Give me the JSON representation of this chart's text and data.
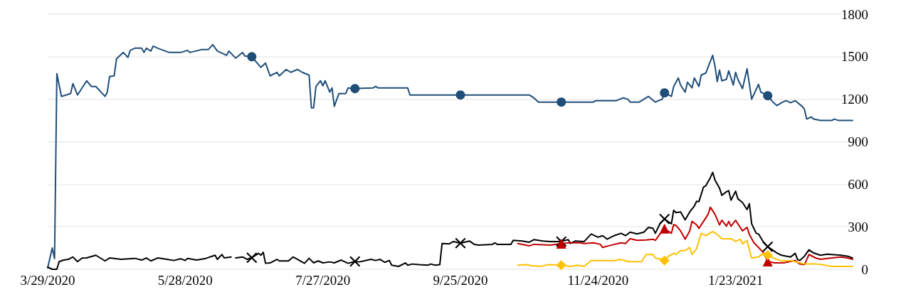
{
  "chart_data": {
    "type": "line",
    "marker": "none",
    "grid": "y",
    "xlim": [
      "2020-03-29",
      "2021-03-15"
    ],
    "xticks": [
      {
        "value": "2020-03-29",
        "label": "3/29/2020"
      },
      {
        "value": "2020-05-28",
        "label": "5/28/2020"
      },
      {
        "value": "2020-07-27",
        "label": "7/27/2020"
      },
      {
        "value": "2020-09-25",
        "label": "9/25/2020"
      },
      {
        "value": "2020-11-24",
        "label": "11/24/2020"
      },
      {
        "value": "2021-01-23",
        "label": "1/23/2021"
      }
    ],
    "ylim": [
      0,
      1800
    ],
    "yticks": [
      0,
      300,
      600,
      900,
      1200,
      1500,
      1800
    ],
    "series": [
      {
        "color": "#1f4e79",
        "x": [
          "2020-03-29",
          "2020-03-31",
          "2020-04-01",
          "2020-04-02",
          "2020-04-04",
          "2020-04-08",
          "2020-04-09",
          "2020-04-11",
          "2020-04-15",
          "2020-04-17",
          "2020-04-19",
          "2020-04-23",
          "2020-04-24",
          "2020-04-25",
          "2020-04-27",
          "2020-04-28",
          "2020-05-01",
          "2020-05-03",
          "2020-05-04",
          "2020-05-06",
          "2020-05-09",
          "2020-05-10",
          "2020-05-11",
          "2020-05-13",
          "2020-05-14",
          "2020-05-16",
          "2020-05-21",
          "2020-05-26",
          "2020-05-29",
          "2020-05-30",
          "2020-06-04",
          "2020-06-07",
          "2020-06-09",
          "2020-06-11",
          "2020-06-13",
          "2020-06-15",
          "2020-06-16",
          "2020-06-19",
          "2020-06-22",
          "2020-06-23",
          "2020-06-26",
          "2020-06-30",
          "2020-07-02",
          "2020-07-04",
          "2020-07-07",
          "2020-07-08",
          "2020-07-11",
          "2020-07-13",
          "2020-07-16",
          "2020-07-18",
          "2020-07-21",
          "2020-07-22",
          "2020-07-23",
          "2020-07-24",
          "2020-07-26",
          "2020-07-27",
          "2020-07-28",
          "2020-07-30",
          "2020-07-31",
          "2020-08-01",
          "2020-08-03",
          "2020-08-06",
          "2020-08-07",
          "2020-08-10",
          "2020-08-18",
          "2020-08-19",
          "2020-08-20",
          "2020-09-02",
          "2020-09-03",
          "2020-09-25",
          "2020-10-25",
          "2020-10-27",
          "2020-10-29",
          "2020-11-08",
          "2020-11-22",
          "2020-11-23",
          "2020-12-02",
          "2020-12-05",
          "2020-12-07",
          "2020-12-08",
          "2020-12-12",
          "2020-12-16",
          "2020-12-19",
          "2020-12-22",
          "2020-12-23",
          "2020-12-26",
          "2020-12-27",
          "2020-12-29",
          "2020-12-30",
          "2021-01-01",
          "2021-01-02",
          "2021-01-04",
          "2021-01-05",
          "2021-01-07",
          "2021-01-08",
          "2021-01-10",
          "2021-01-13",
          "2021-01-14",
          "2021-01-15",
          "2021-01-16",
          "2021-01-17",
          "2021-01-19",
          "2021-01-20",
          "2021-01-22",
          "2021-01-23",
          "2021-01-24",
          "2021-01-26",
          "2021-01-28",
          "2021-01-30",
          "2021-02-02",
          "2021-02-03",
          "2021-02-06",
          "2021-02-08",
          "2021-02-10",
          "2021-02-12",
          "2021-02-14",
          "2021-02-16",
          "2021-02-18",
          "2021-02-21",
          "2021-02-22",
          "2021-02-23",
          "2021-02-25",
          "2021-02-26",
          "2021-03-01",
          "2021-03-06",
          "2021-03-07",
          "2021-03-09",
          "2021-03-15"
        ],
        "values": [
          10,
          150,
          75,
          1380,
          1220,
          1240,
          1310,
          1230,
          1330,
          1290,
          1290,
          1220,
          1250,
          1360,
          1365,
          1485,
          1530,
          1495,
          1545,
          1560,
          1560,
          1530,
          1560,
          1540,
          1575,
          1560,
          1530,
          1530,
          1545,
          1530,
          1550,
          1550,
          1585,
          1540,
          1525,
          1510,
          1540,
          1490,
          1530,
          1505,
          1500,
          1425,
          1455,
          1365,
          1390,
          1365,
          1410,
          1390,
          1410,
          1390,
          1370,
          1140,
          1140,
          1290,
          1330,
          1295,
          1330,
          1250,
          1280,
          1150,
          1240,
          1240,
          1280,
          1275,
          1280,
          1290,
          1280,
          1280,
          1230,
          1230,
          1230,
          1210,
          1180,
          1180,
          1180,
          1190,
          1190,
          1210,
          1200,
          1180,
          1180,
          1220,
          1180,
          1200,
          1245,
          1220,
          1290,
          1350,
          1300,
          1250,
          1320,
          1280,
          1350,
          1290,
          1370,
          1385,
          1510,
          1435,
          1325,
          1405,
          1330,
          1340,
          1400,
          1300,
          1390,
          1340,
          1275,
          1415,
          1200,
          1305,
          1250,
          1225,
          1185,
          1155,
          1175,
          1190,
          1175,
          1190,
          1150,
          1130,
          1060,
          1075,
          1060,
          1050,
          1050,
          1060,
          1050,
          1050
        ]
      },
      {
        "color": "#000000",
        "x": [
          "2020-03-29",
          "2020-03-31",
          "2020-04-02",
          "2020-04-03",
          "2020-04-05",
          "2020-04-07",
          "2020-04-09",
          "2020-04-11",
          "2020-04-13",
          "2020-04-15",
          "2020-04-19",
          "2020-04-23",
          "2020-04-25",
          "2020-04-30",
          "2020-05-06",
          "2020-05-09",
          "2020-05-11",
          "2020-05-13",
          "2020-05-16",
          "2020-05-20",
          "2020-05-23",
          "2020-05-26",
          "2020-05-28",
          "2020-05-29",
          "2020-06-02",
          "2020-06-06",
          "2020-06-10",
          "2020-06-11",
          "2020-06-13",
          "2020-06-14",
          "2020-06-17",
          "2020-06-18",
          "2020-06-19",
          "2020-06-22",
          "2020-06-24",
          "2020-06-26",
          "2020-06-29",
          "2020-06-30",
          "2020-07-01",
          "2020-07-02",
          "2020-07-04",
          "2020-07-07",
          "2020-07-08",
          "2020-07-12",
          "2020-07-14",
          "2020-07-16",
          "2020-07-19",
          "2020-07-21",
          "2020-07-23",
          "2020-07-25",
          "2020-07-27",
          "2020-07-30",
          "2020-08-01",
          "2020-08-04",
          "2020-08-07",
          "2020-08-10",
          "2020-08-12",
          "2020-08-17",
          "2020-08-19",
          "2020-08-21",
          "2020-08-23",
          "2020-08-25",
          "2020-08-26",
          "2020-08-29",
          "2020-09-01",
          "2020-09-02",
          "2020-09-04",
          "2020-09-07",
          "2020-09-11",
          "2020-09-12",
          "2020-09-14",
          "2020-09-16",
          "2020-09-17",
          "2020-09-20",
          "2020-09-22",
          "2020-09-25",
          "2020-09-29",
          "2020-10-01",
          "2020-10-03",
          "2020-10-09",
          "2020-10-10",
          "2020-10-11",
          "2020-10-17",
          "2020-10-18",
          "2020-10-22",
          "2020-10-25",
          "2020-10-27",
          "2020-10-31",
          "2020-11-03",
          "2020-11-08",
          "2020-11-11",
          "2020-11-12",
          "2020-11-14",
          "2020-11-18",
          "2020-11-21",
          "2020-11-24",
          "2020-11-26",
          "2020-11-28",
          "2020-12-01",
          "2020-12-04",
          "2020-12-06",
          "2020-12-08",
          "2020-12-11",
          "2020-12-14",
          "2020-12-16",
          "2020-12-18",
          "2020-12-19",
          "2020-12-21",
          "2020-12-23",
          "2020-12-26",
          "2020-12-27",
          "2020-12-28",
          "2020-12-30",
          "2021-01-01",
          "2021-01-03",
          "2021-01-05",
          "2021-01-06",
          "2021-01-07",
          "2021-01-09",
          "2021-01-10",
          "2021-01-12",
          "2021-01-13",
          "2021-01-14",
          "2021-01-16",
          "2021-01-17",
          "2021-01-19",
          "2021-01-20",
          "2021-01-21",
          "2021-01-23",
          "2021-01-24",
          "2021-01-26",
          "2021-01-28",
          "2021-01-29",
          "2021-01-30",
          "2021-02-01",
          "2021-02-02",
          "2021-02-04",
          "2021-02-06",
          "2021-02-08",
          "2021-02-10",
          "2021-02-12",
          "2021-02-16",
          "2021-02-18",
          "2021-02-19",
          "2021-02-20",
          "2021-02-22",
          "2021-02-24",
          "2021-02-26",
          "2021-03-01",
          "2021-03-04",
          "2021-03-06",
          "2021-03-10",
          "2021-03-13",
          "2021-03-15"
        ],
        "values": [
          15,
          0,
          0,
          54,
          65,
          70,
          87,
          54,
          79,
          80,
          99,
          59,
          80,
          70,
          77,
          65,
          80,
          59,
          80,
          70,
          62,
          74,
          62,
          77,
          65,
          77,
          99,
          70,
          104,
          80,
          87,
          null,
          80,
          87,
          70,
          82,
          112,
          99,
          120,
          42,
          45,
          70,
          59,
          59,
          87,
          70,
          42,
          77,
          45,
          59,
          45,
          52,
          45,
          65,
          42,
          55,
          52,
          70,
          62,
          70,
          49,
          62,
          29,
          20,
          45,
          29,
          37,
          32,
          29,
          37,
          29,
          32,
          182,
          179,
          196,
          184,
          199,
          176,
          171,
          176,
          187,
          176,
          176,
          204,
          199,
          191,
          209,
          199,
          196,
          196,
          209,
          182,
          199,
          196,
          249,
          226,
          237,
          212,
          237,
          254,
          237,
          262,
          249,
          262,
          296,
          288,
          254,
          321,
          355,
          321,
          416,
          400,
          405,
          349,
          405,
          446,
          480,
          477,
          580,
          589,
          647,
          684,
          630,
          572,
          522,
          547,
          555,
          488,
          551,
          497,
          471,
          421,
          463,
          321,
          254,
          249,
          196,
          159,
          137,
          115,
          99,
          87,
          112,
          70,
          62,
          92,
          137,
          115,
          99,
          107,
          104,
          99,
          92,
          79
        ]
      },
      {
        "color": "#c00000",
        "x": [
          "2020-10-20",
          "2020-10-25",
          "2020-10-27",
          "2020-11-03",
          "2020-11-08",
          "2020-11-11",
          "2020-11-16",
          "2020-11-18",
          "2020-11-22",
          "2020-11-25",
          "2020-11-26",
          "2020-11-30",
          "2020-12-04",
          "2020-12-06",
          "2020-12-08",
          "2020-12-11",
          "2020-12-15",
          "2020-12-18",
          "2020-12-19",
          "2020-12-21",
          "2020-12-23",
          "2020-12-26",
          "2020-12-27",
          "2020-12-28",
          "2020-12-30",
          "2021-01-01",
          "2021-01-03",
          "2021-01-04",
          "2021-01-06",
          "2021-01-07",
          "2021-01-09",
          "2021-01-11",
          "2021-01-12",
          "2021-01-14",
          "2021-01-16",
          "2021-01-17",
          "2021-01-19",
          "2021-01-20",
          "2021-01-21",
          "2021-01-23",
          "2021-01-25",
          "2021-01-26",
          "2021-01-28",
          "2021-01-29",
          "2021-01-31",
          "2021-02-02",
          "2021-02-04",
          "2021-02-06",
          "2021-02-09",
          "2021-02-13",
          "2021-02-18",
          "2021-02-20",
          "2021-02-22",
          "2021-02-24",
          "2021-02-27",
          "2021-03-01",
          "2021-03-06",
          "2021-03-10",
          "2021-03-13",
          "2021-03-15"
        ],
        "values": [
          182,
          165,
          176,
          171,
          180,
          187,
          187,
          182,
          187,
          176,
          154,
          171,
          187,
          182,
          216,
          204,
          207,
          212,
          204,
          249,
          287,
          254,
          316,
          309,
          271,
          212,
          271,
          338,
          313,
          288,
          338,
          388,
          438,
          388,
          313,
          346,
          304,
          338,
          304,
          346,
          296,
          271,
          296,
          246,
          187,
          154,
          120,
          55,
          45,
          45,
          62,
          37,
          32,
          104,
          79,
          70,
          80,
          87,
          79,
          70
        ]
      },
      {
        "color": "#ffc000",
        "x": [
          "2020-10-20",
          "2020-10-24",
          "2020-10-26",
          "2020-10-30",
          "2020-11-02",
          "2020-11-08",
          "2020-11-12",
          "2020-11-15",
          "2020-11-18",
          "2020-11-21",
          "2020-12-02",
          "2020-12-03",
          "2020-12-05",
          "2020-12-07",
          "2020-12-13",
          "2020-12-15",
          "2020-12-18",
          "2020-12-19",
          "2020-12-22",
          "2020-12-23",
          "2020-12-25",
          "2020-12-27",
          "2020-12-28",
          "2020-12-30",
          "2021-01-01",
          "2021-01-03",
          "2021-01-04",
          "2021-01-06",
          "2021-01-08",
          "2021-01-10",
          "2021-01-13",
          "2021-01-15",
          "2021-01-17",
          "2021-01-21",
          "2021-01-23",
          "2021-01-25",
          "2021-01-26",
          "2021-01-28",
          "2021-01-29",
          "2021-01-30",
          "2021-02-02",
          "2021-02-04",
          "2021-02-06",
          "2021-02-10",
          "2021-02-12",
          "2021-02-16",
          "2021-02-22",
          "2021-02-27",
          "2021-03-02",
          "2021-03-06",
          "2021-03-15"
        ],
        "values": [
          29,
          32,
          25,
          20,
          32,
          29,
          20,
          29,
          20,
          62,
          62,
          70,
          65,
          54,
          54,
          104,
          104,
          79,
          70,
          62,
          95,
          112,
          104,
          132,
          132,
          154,
          104,
          146,
          254,
          237,
          266,
          246,
          216,
          216,
          196,
          212,
          179,
          204,
          137,
          79,
          87,
          112,
          99,
          70,
          59,
          62,
          37,
          37,
          32,
          20,
          20
        ]
      },
      {
        "type": "scatter",
        "marker": "circle",
        "color": "#1f4e79",
        "x": [
          "2020-06-26",
          "2020-08-10",
          "2020-09-25",
          "2020-11-08",
          "2020-12-23",
          "2021-02-06"
        ],
        "values": [
          1500,
          1275,
          1230,
          1180,
          1245,
          1225
        ]
      },
      {
        "type": "scatter",
        "marker": "cross",
        "color": "#000000",
        "x": [
          "2020-06-26",
          "2020-08-10",
          "2020-09-25",
          "2020-11-08",
          "2020-12-23",
          "2021-02-06"
        ],
        "values": [
          82,
          55,
          184,
          196,
          355,
          159
        ]
      },
      {
        "type": "scatter",
        "marker": "triangle",
        "color": "#c00000",
        "x": [
          "2020-11-08",
          "2020-12-23",
          "2021-02-06"
        ],
        "values": [
          180,
          287,
          55
        ]
      },
      {
        "type": "scatter",
        "marker": "diamond",
        "color": "#ffc000",
        "x": [
          "2020-11-08",
          "2020-12-23",
          "2021-02-06"
        ],
        "values": [
          29,
          62,
          99
        ]
      }
    ]
  }
}
